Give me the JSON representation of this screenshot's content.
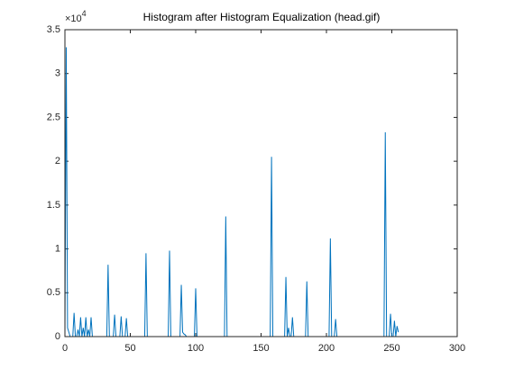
{
  "chart_data": {
    "type": "line",
    "title": "Histogram after Histogram Equalization (head.gif)",
    "y_multiplier_base": "×10",
    "y_multiplier_exp": "4",
    "xlim": [
      0,
      300
    ],
    "xticks": [
      0,
      50,
      100,
      150,
      200,
      250,
      300
    ],
    "ylim": [
      0,
      3.5
    ],
    "yticks": [
      0,
      0.5,
      1,
      1.5,
      2,
      2.5,
      3,
      3.5
    ],
    "series": [
      {
        "color": "#0072bd",
        "x": [
          0,
          1,
          2,
          3,
          4,
          5,
          6,
          7,
          8,
          9,
          10,
          11,
          12,
          13,
          14,
          15,
          16,
          17,
          18,
          19,
          20,
          21,
          22,
          23,
          24,
          25,
          26,
          27,
          28,
          29,
          30,
          31,
          32,
          33,
          34,
          35,
          36,
          37,
          38,
          39,
          40,
          41,
          42,
          43,
          44,
          45,
          46,
          47,
          48,
          49,
          50,
          51,
          52,
          53,
          54,
          55,
          56,
          57,
          58,
          59,
          60,
          61,
          62,
          63,
          64,
          65,
          66,
          67,
          68,
          69,
          70,
          71,
          72,
          73,
          74,
          75,
          76,
          77,
          78,
          79,
          80,
          81,
          82,
          83,
          84,
          85,
          86,
          87,
          88,
          89,
          90,
          91,
          92,
          93,
          94,
          95,
          96,
          97,
          98,
          99,
          100,
          101,
          102,
          103,
          104,
          105,
          106,
          107,
          108,
          109,
          110,
          111,
          112,
          113,
          114,
          115,
          116,
          117,
          118,
          119,
          120,
          121,
          122,
          123,
          124,
          125,
          126,
          127,
          128,
          129,
          130,
          131,
          132,
          133,
          134,
          135,
          136,
          137,
          138,
          139,
          140,
          141,
          142,
          143,
          144,
          145,
          146,
          147,
          148,
          149,
          150,
          151,
          152,
          153,
          154,
          155,
          156,
          157,
          158,
          159,
          160,
          161,
          162,
          163,
          164,
          165,
          166,
          167,
          168,
          169,
          170,
          171,
          172,
          173,
          174,
          175,
          176,
          177,
          178,
          179,
          180,
          181,
          182,
          183,
          184,
          185,
          186,
          187,
          188,
          189,
          190,
          191,
          192,
          193,
          194,
          195,
          196,
          197,
          198,
          199,
          200,
          201,
          202,
          203,
          204,
          205,
          206,
          207,
          208,
          209,
          210,
          211,
          212,
          213,
          214,
          215,
          216,
          217,
          218,
          219,
          220,
          221,
          222,
          223,
          224,
          225,
          226,
          227,
          228,
          229,
          230,
          231,
          232,
          233,
          234,
          235,
          236,
          237,
          238,
          239,
          240,
          241,
          242,
          243,
          244,
          245,
          246,
          247,
          248,
          249,
          250,
          251,
          252,
          253,
          254,
          255
        ],
        "values": [
          0,
          3.3,
          0.1,
          0.05,
          0,
          0,
          0,
          0.27,
          0,
          0,
          0.08,
          0,
          0.22,
          0,
          0.1,
          0,
          0.22,
          0,
          0.08,
          0,
          0.22,
          0,
          0,
          0,
          0,
          0,
          0,
          0,
          0,
          0,
          0,
          0,
          0,
          0.82,
          0,
          0,
          0,
          0,
          0.25,
          0,
          0,
          0,
          0,
          0.23,
          0,
          0,
          0,
          0.21,
          0,
          0,
          0,
          0,
          0,
          0,
          0,
          0,
          0,
          0,
          0,
          0,
          0,
          0,
          0.95,
          0,
          0,
          0,
          0,
          0,
          0,
          0,
          0,
          0,
          0,
          0,
          0,
          0,
          0,
          0,
          0,
          0,
          0.98,
          0,
          0,
          0,
          0,
          0,
          0,
          0,
          0,
          0.59,
          0.05,
          0.03,
          0.02,
          0,
          0,
          0,
          0,
          0,
          0,
          0,
          0.55,
          0,
          0,
          0,
          0,
          0,
          0,
          0,
          0,
          0,
          0,
          0,
          0,
          0,
          0,
          0,
          0,
          0,
          0,
          0,
          0,
          0,
          0,
          1.37,
          0,
          0,
          0,
          0,
          0,
          0,
          0,
          0,
          0,
          0,
          0,
          0,
          0,
          0,
          0,
          0,
          0,
          0,
          0,
          0,
          0,
          0,
          0,
          0,
          0,
          0,
          0,
          0,
          0,
          0,
          0,
          0,
          0,
          0,
          2.05,
          0,
          0,
          0,
          0,
          0,
          0,
          0,
          0,
          0,
          0,
          0.68,
          0,
          0.1,
          0,
          0,
          0.22,
          0,
          0,
          0,
          0,
          0,
          0,
          0,
          0,
          0,
          0,
          0.63,
          0,
          0,
          0,
          0,
          0,
          0,
          0,
          0,
          0,
          0,
          0,
          0,
          0,
          0,
          0,
          0,
          0,
          1.12,
          0,
          0,
          0,
          0.2,
          0,
          0,
          0,
          0,
          0,
          0,
          0,
          0,
          0,
          0,
          0,
          0,
          0,
          0,
          0,
          0,
          0,
          0,
          0,
          0,
          0,
          0,
          0,
          0,
          0,
          0,
          0,
          0,
          0,
          0,
          0,
          0,
          0,
          0,
          0,
          0,
          0,
          2.33,
          0,
          0,
          0,
          0.26,
          0,
          0,
          0.18,
          0,
          0.12,
          0.05
        ]
      }
    ]
  }
}
